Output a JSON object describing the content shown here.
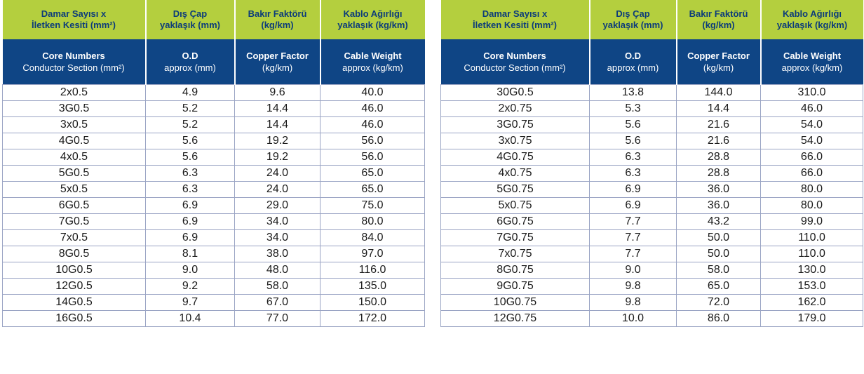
{
  "columns": {
    "core": {
      "tr_line1": "Damar Sayısı x",
      "tr_line2": "İletken Kesiti (mm²)",
      "en_line1": "Core Numbers",
      "en_line2": "Conductor Section (mm²)"
    },
    "od": {
      "tr_line1": "Dış Çap",
      "tr_line2": "yaklaşık (mm)",
      "en_line1": "O.D",
      "en_line2": "approx (mm)"
    },
    "copper": {
      "tr_line1": "Bakır Faktörü",
      "tr_line2": "(kg/km)",
      "en_line1": "Copper Factor",
      "en_line2": "(kg/km)"
    },
    "weight": {
      "tr_line1": "Kablo Ağırlığı",
      "tr_line2": "yaklaşık (kg/km)",
      "en_line1": "Cable Weight",
      "en_line2": "approx (kg/km)"
    }
  },
  "tables": [
    {
      "rows": [
        [
          "2x0.5",
          "4.9",
          "9.6",
          "40.0"
        ],
        [
          "3G0.5",
          "5.2",
          "14.4",
          "46.0"
        ],
        [
          "3x0.5",
          "5.2",
          "14.4",
          "46.0"
        ],
        [
          "4G0.5",
          "5.6",
          "19.2",
          "56.0"
        ],
        [
          "4x0.5",
          "5.6",
          "19.2",
          "56.0"
        ],
        [
          "5G0.5",
          "6.3",
          "24.0",
          "65.0"
        ],
        [
          "5x0.5",
          "6.3",
          "24.0",
          "65.0"
        ],
        [
          "6G0.5",
          "6.9",
          "29.0",
          "75.0"
        ],
        [
          "7G0.5",
          "6.9",
          "34.0",
          "80.0"
        ],
        [
          "7x0.5",
          "6.9",
          "34.0",
          "84.0"
        ],
        [
          "8G0.5",
          "8.1",
          "38.0",
          "97.0"
        ],
        [
          "10G0.5",
          "9.0",
          "48.0",
          "116.0"
        ],
        [
          "12G0.5",
          "9.2",
          "58.0",
          "135.0"
        ],
        [
          "14G0.5",
          "9.7",
          "67.0",
          "150.0"
        ],
        [
          "16G0.5",
          "10.4",
          "77.0",
          "172.0"
        ]
      ]
    },
    {
      "rows": [
        [
          "30G0.5",
          "13.8",
          "144.0",
          "310.0"
        ],
        [
          "2x0.75",
          "5.3",
          "14.4",
          "46.0"
        ],
        [
          "3G0.75",
          "5.6",
          "21.6",
          "54.0"
        ],
        [
          "3x0.75",
          "5.6",
          "21.6",
          "54.0"
        ],
        [
          "4G0.75",
          "6.3",
          "28.8",
          "66.0"
        ],
        [
          "4x0.75",
          "6.3",
          "28.8",
          "66.0"
        ],
        [
          "5G0.75",
          "6.9",
          "36.0",
          "80.0"
        ],
        [
          "5x0.75",
          "6.9",
          "36.0",
          "80.0"
        ],
        [
          "6G0.75",
          "7.7",
          "43.2",
          "99.0"
        ],
        [
          "7G0.75",
          "7.7",
          "50.0",
          "110.0"
        ],
        [
          "7x0.75",
          "7.7",
          "50.0",
          "110.0"
        ],
        [
          "8G0.75",
          "9.0",
          "58.0",
          "130.0"
        ],
        [
          "9G0.75",
          "9.8",
          "65.0",
          "153.0"
        ],
        [
          "10G0.75",
          "9.8",
          "72.0",
          "162.0"
        ],
        [
          "12G0.75",
          "10.0",
          "86.0",
          "179.0"
        ]
      ]
    }
  ],
  "colors": {
    "header_tr_bg": "#b4cf3e",
    "header_tr_text": "#0c3c7a",
    "header_en_bg": "#0f4585",
    "header_en_text": "#ffffff",
    "grid_line": "#9aa4c4"
  }
}
